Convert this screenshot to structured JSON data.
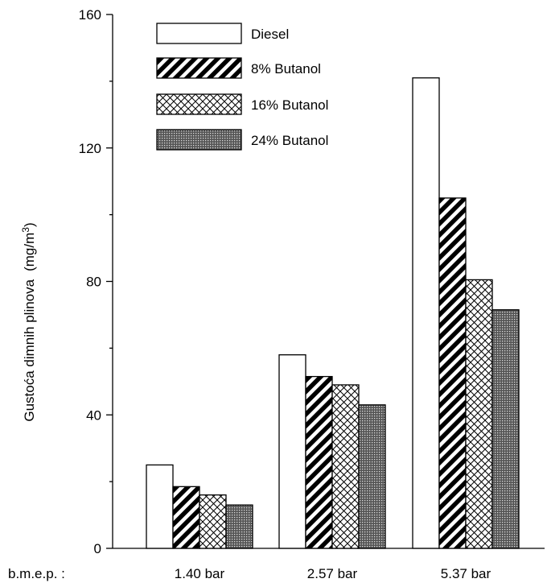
{
  "chart_data": {
    "type": "bar",
    "categories": [
      "1.40 bar",
      "2.57 bar",
      "5.37 bar"
    ],
    "category_prefix": "b.m.e.p. :",
    "series": [
      {
        "name": "Diesel",
        "values": [
          25,
          58,
          141
        ],
        "pattern": "solid-white"
      },
      {
        "name": "8% Butanol",
        "values": [
          18.5,
          51.5,
          105
        ],
        "pattern": "diagonal"
      },
      {
        "name": "16% Butanol",
        "values": [
          16,
          49,
          80.5
        ],
        "pattern": "crosshatch"
      },
      {
        "name": "24% Butanol",
        "values": [
          13,
          43,
          71.5
        ],
        "pattern": "dots"
      }
    ],
    "ylabel_main": "Gustoća dimnih plinova",
    "ylabel_unit": "(mg/m",
    "ylabel_sup": "3",
    "ylabel_close": ")",
    "ylim": [
      0,
      160
    ],
    "yticks": [
      "0",
      "40",
      "80",
      "120",
      "160"
    ],
    "legend_position": "top-left",
    "grid": false
  }
}
